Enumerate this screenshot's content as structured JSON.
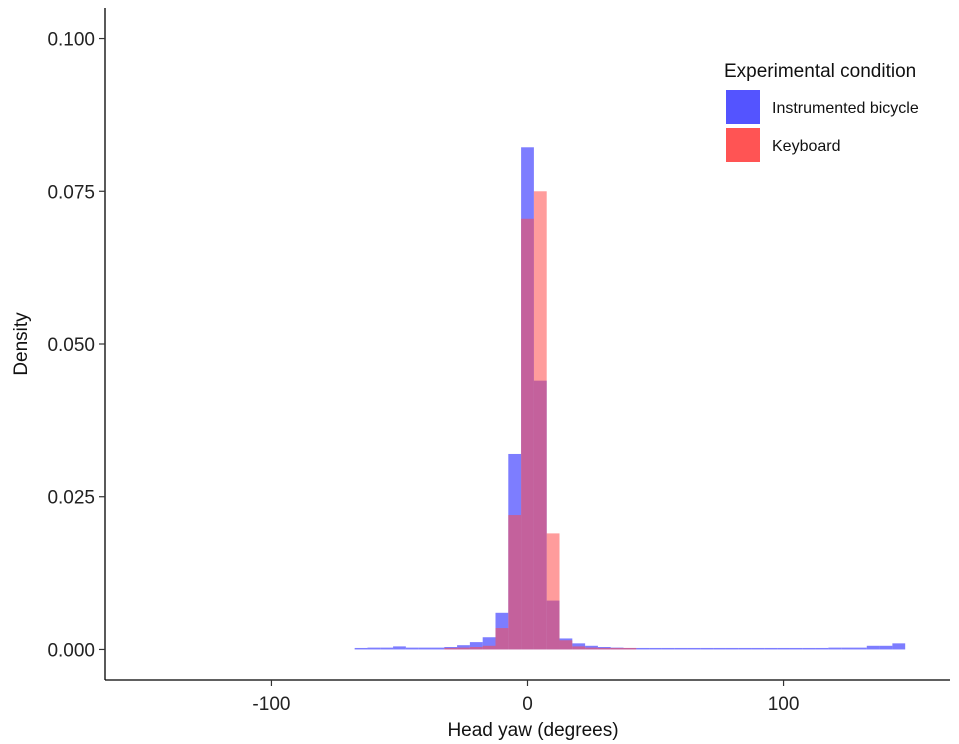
{
  "chart_data": {
    "type": "bar",
    "subtype": "overlaid-histogram",
    "title": "",
    "xlabel": "Head yaw (degrees)",
    "ylabel": "Density",
    "xlim": [
      -165,
      165
    ],
    "ylim": [
      -0.005,
      0.105
    ],
    "x_ticks": [
      -100,
      0,
      100
    ],
    "x_tick_labels": [
      "-100",
      "0",
      "100"
    ],
    "y_ticks": [
      0,
      0.025,
      0.05,
      0.075,
      0.1
    ],
    "y_tick_labels": [
      "0.000",
      "0.025",
      "0.050",
      "0.075",
      "0.100"
    ],
    "grid": false,
    "legend": {
      "title": "Experimental condition",
      "placement": "top-right"
    },
    "bin_width": 5,
    "bin_centers": [
      -65,
      -60,
      -55,
      -50,
      -45,
      -40,
      -35,
      -30,
      -25,
      -20,
      -15,
      -10,
      -5,
      0,
      5,
      10,
      15,
      20,
      25,
      30,
      35,
      40,
      45,
      50,
      55,
      60,
      65,
      70,
      75,
      80,
      85,
      90,
      95,
      100,
      105,
      110,
      115,
      120,
      125,
      130,
      135,
      140,
      145
    ],
    "series": [
      {
        "name": "Instrumented bicycle",
        "color": "#4B4BFF",
        "values": [
          0.0001,
          0.0003,
          0.0003,
          0.0005,
          0.0003,
          0.0003,
          0.0003,
          0.0004,
          0.0007,
          0.0012,
          0.002,
          0.006,
          0.032,
          0.0822,
          0.044,
          0.008,
          0.0018,
          0.001,
          0.0006,
          0.0004,
          0.0003,
          0.0002,
          0.0001,
          0.0001,
          0.0001,
          0.0001,
          0.0001,
          0.0001,
          0.0001,
          0.0001,
          0.0001,
          0.0001,
          0.0001,
          0.0001,
          0.0001,
          0.0001,
          0.0001,
          0.0003,
          0.0003,
          0.0003,
          0.0006,
          0.0006,
          0.001
        ]
      },
      {
        "name": "Keyboard",
        "color": "#FF4B4B",
        "values": [
          0,
          0,
          0,
          0,
          0,
          0,
          0,
          0.0002,
          0.0003,
          0.0004,
          0.0006,
          0.0035,
          0.022,
          0.0705,
          0.075,
          0.019,
          0.0015,
          0.0005,
          0.0003,
          0.0002,
          0.0002,
          0.0001,
          0,
          0,
          0,
          0,
          0,
          0,
          0,
          0,
          0,
          0,
          0,
          0,
          0,
          0,
          0,
          0,
          0,
          0,
          0,
          0,
          0
        ]
      }
    ]
  }
}
